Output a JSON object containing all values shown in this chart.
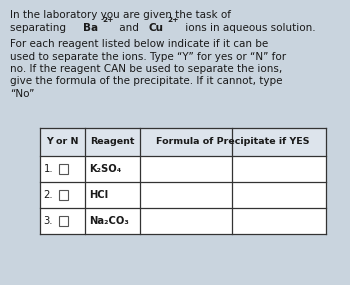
{
  "bg_color": "#c9d4de",
  "text_color": "#1a1a1a",
  "line1": "In the laboratory you are given the task of",
  "line2_plain": "separating ",
  "line2_bold_parts": [
    {
      "text": "Ba",
      "bold": true,
      "super": false
    },
    {
      "text": "2+",
      "bold": true,
      "super": true
    },
    {
      "text": " and ",
      "bold": false,
      "super": false
    },
    {
      "text": "Cu",
      "bold": true,
      "super": false
    },
    {
      "text": "2+",
      "bold": true,
      "super": true
    },
    {
      "text": " ions in aqueous solution.",
      "bold": false,
      "super": false
    }
  ],
  "body_lines": [
    "For each reagent listed below indicate if it can be",
    "used to separate the ions. Type “Y” for yes or “N” for",
    "no. If the reagent CAN be used to separate the ions,",
    "give the formula of the precipitate. If it cannot, type",
    "“No”"
  ],
  "table_header": [
    "Y or N",
    "Reagent",
    "Formula of Precipitate if YES"
  ],
  "table_rows": [
    {
      "num": "1.",
      "reagent": "K₂SO₄"
    },
    {
      "num": "2.",
      "reagent": "HCI"
    },
    {
      "num": "3.",
      "reagent": "Na₂CO₃"
    }
  ],
  "font_size": 7.5,
  "font_size_table_header": 6.8,
  "font_size_table_body": 7.2
}
